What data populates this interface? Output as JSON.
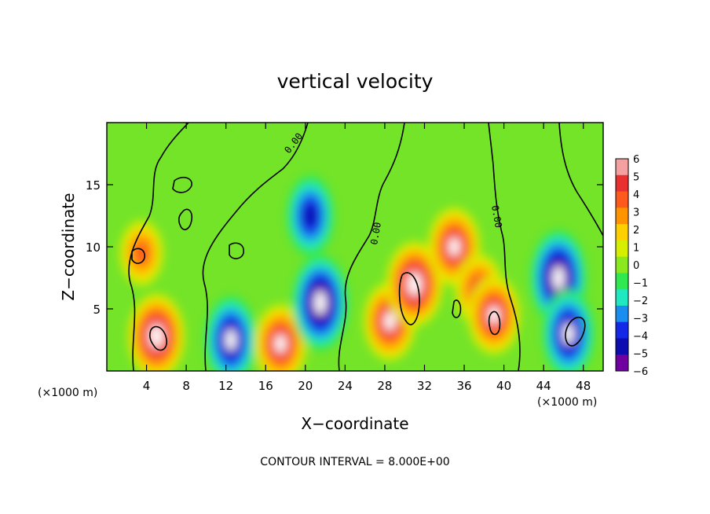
{
  "chart_data": {
    "type": "heatmap",
    "title": "vertical velocity",
    "xlabel": "X−coordinate",
    "ylabel": "Z−coordinate",
    "x_unit_label": "(×1000 m)",
    "y_unit_label": "(×1000 m)",
    "xlim": [
      0,
      50
    ],
    "ylim": [
      0,
      20
    ],
    "x_ticks": [
      4,
      8,
      12,
      16,
      20,
      24,
      28,
      32,
      36,
      40,
      44,
      48
    ],
    "y_ticks": [
      5,
      10,
      15
    ],
    "colorbar": {
      "ticks": [
        "6",
        "5",
        "4",
        "3",
        "2",
        "1",
        "0",
        "−1",
        "−2",
        "−3",
        "−4",
        "−5",
        "−6"
      ],
      "colors": [
        "#f4a0a0",
        "#e83030",
        "#ff5a1e",
        "#ff9400",
        "#ffd000",
        "#d6ef00",
        "#8ae81e",
        "#30e850",
        "#20e8c0",
        "#1a8ef0",
        "#1428e8",
        "#0c0cb0",
        "#7000a0"
      ]
    },
    "contour_labels": [
      "0.00",
      "0.00",
      "0.00"
    ],
    "footer": "CONTOUR INTERVAL =  8.000E+00",
    "features": [
      {
        "kind": "up",
        "x": 5,
        "z": 2.8,
        "amp": 7
      },
      {
        "kind": "up",
        "x": 3.5,
        "z": 9.5,
        "amp": 4
      },
      {
        "kind": "down",
        "x": 12.5,
        "z": 2.5,
        "amp": -6
      },
      {
        "kind": "up",
        "x": 17.5,
        "z": 2.2,
        "amp": 6
      },
      {
        "kind": "down",
        "x": 21.5,
        "z": 5.5,
        "amp": -7
      },
      {
        "kind": "down",
        "x": 20.5,
        "z": 12.5,
        "amp": -5
      },
      {
        "kind": "up",
        "x": 28.5,
        "z": 4,
        "amp": 6
      },
      {
        "kind": "up",
        "x": 31,
        "z": 7,
        "amp": 7
      },
      {
        "kind": "up",
        "x": 35,
        "z": 10,
        "amp": 6
      },
      {
        "kind": "up",
        "x": 37.5,
        "z": 6.5,
        "amp": 5
      },
      {
        "kind": "up",
        "x": 39,
        "z": 4.5,
        "amp": 6
      },
      {
        "kind": "down",
        "x": 45.5,
        "z": 7.5,
        "amp": -7
      },
      {
        "kind": "down",
        "x": 46.5,
        "z": 3,
        "amp": -6
      }
    ]
  }
}
